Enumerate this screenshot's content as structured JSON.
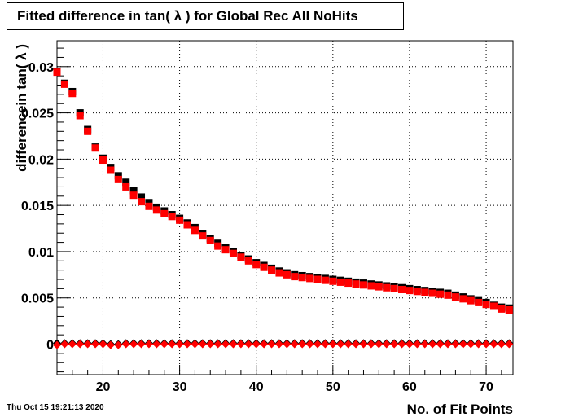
{
  "title": "Fitted difference in tan( λ ) for Global Rec All NoHits",
  "footer_date": "Thu Oct 15 19:21:13 2020",
  "chart_data": {
    "type": "scatter",
    "title": "Fitted difference in tan( λ ) for Global Rec All NoHits",
    "xlabel": "No. of Fit Points",
    "ylabel": "differencein tan( λ )",
    "xlim": [
      14,
      73.5
    ],
    "ylim": [
      -0.0033,
      0.0328
    ],
    "x_ticks": [
      20,
      30,
      40,
      50,
      60,
      70
    ],
    "x_tick_labels": [
      "20",
      "30",
      "40",
      "50",
      "60",
      "70"
    ],
    "y_ticks": [
      0,
      0.005,
      0.01,
      0.015,
      0.02,
      0.025,
      0.03
    ],
    "y_tick_labels": [
      "0",
      "0.005",
      "0.01",
      "0.015",
      "0.02",
      "0.025",
      "0.03"
    ],
    "grid": true,
    "colors": {
      "black_series": "#000000",
      "red_series": "#ff0000"
    },
    "x": [
      14,
      15,
      16,
      17,
      18,
      19,
      20,
      21,
      22,
      23,
      24,
      25,
      26,
      27,
      28,
      29,
      30,
      31,
      32,
      33,
      34,
      35,
      36,
      37,
      38,
      39,
      40,
      41,
      42,
      43,
      44,
      45,
      46,
      47,
      48,
      49,
      50,
      51,
      52,
      53,
      54,
      55,
      56,
      57,
      58,
      59,
      60,
      61,
      62,
      63,
      64,
      65,
      66,
      67,
      68,
      69,
      70,
      71,
      72,
      73
    ],
    "series": [
      {
        "marker": "square",
        "color": "#000000",
        "values": [
          0.0295,
          0.0282,
          0.0273,
          0.025,
          0.0232,
          0.0213,
          0.0201,
          0.0191,
          0.0182,
          0.0175,
          0.0166,
          0.0159,
          0.0153,
          0.0148,
          0.0144,
          0.014,
          0.0136,
          0.0131,
          0.0126,
          0.0119,
          0.0114,
          0.0109,
          0.0104,
          0.01,
          0.0096,
          0.0092,
          0.0088,
          0.0085,
          0.0082,
          0.0079,
          0.0077,
          0.0075,
          0.0074,
          0.0073,
          0.0072,
          0.0071,
          0.007,
          0.0069,
          0.0068,
          0.0067,
          0.0066,
          0.0065,
          0.0064,
          0.0063,
          0.0062,
          0.0061,
          0.006,
          0.0059,
          0.0058,
          0.0057,
          0.0056,
          0.0055,
          0.0053,
          0.0051,
          0.0049,
          0.0047,
          0.0045,
          0.0042,
          0.004,
          0.0039
        ]
      },
      {
        "marker": "square",
        "color": "#ff0000",
        "values": [
          0.0294,
          0.0281,
          0.0271,
          0.0247,
          0.023,
          0.0212,
          0.0199,
          0.0188,
          0.0178,
          0.017,
          0.0161,
          0.0154,
          0.0149,
          0.0145,
          0.0141,
          0.0138,
          0.0134,
          0.0129,
          0.0123,
          0.0117,
          0.0112,
          0.0106,
          0.0102,
          0.0098,
          0.0094,
          0.009,
          0.0086,
          0.0083,
          0.008,
          0.0077,
          0.0075,
          0.0073,
          0.0072,
          0.0071,
          0.007,
          0.0069,
          0.0068,
          0.0067,
          0.0066,
          0.0065,
          0.0064,
          0.0063,
          0.0062,
          0.0061,
          0.006,
          0.0059,
          0.0058,
          0.0057,
          0.0056,
          0.0055,
          0.0054,
          0.0053,
          0.0051,
          0.0049,
          0.0047,
          0.0045,
          0.0043,
          0.0041,
          0.0038,
          0.0037
        ]
      },
      {
        "marker": "diamond",
        "color": "#000000",
        "values": [
          0.0001,
          0.0001,
          0.0001,
          0.0001,
          0.0001,
          0.0001,
          0.0001,
          0.0,
          0.0,
          0.0001,
          0.0001,
          0.0001,
          0.0001,
          0.0001,
          0.0001,
          0.0001,
          0.0001,
          0.0001,
          0.0001,
          0.0001,
          0.0001,
          0.0001,
          0.0001,
          0.0001,
          0.0001,
          0.0001,
          0.0001,
          0.0001,
          0.0001,
          0.0001,
          0.0001,
          0.0001,
          0.0001,
          0.0001,
          0.0001,
          0.0001,
          0.0001,
          0.0001,
          0.0001,
          0.0001,
          0.0001,
          0.0001,
          0.0001,
          0.0001,
          0.0001,
          0.0001,
          0.0001,
          0.0001,
          0.0001,
          0.0001,
          0.0001,
          0.0001,
          0.0001,
          0.0001,
          0.0001,
          0.0001,
          0.0001,
          0.0001,
          0.0001,
          0.0001
        ]
      },
      {
        "marker": "diamond",
        "color": "#ff0000",
        "values": [
          -0.0001,
          0.0,
          0.0,
          0.0,
          0.0,
          0.0,
          0.0,
          -0.0001,
          -0.0001,
          0.0,
          0.0,
          0.0,
          0.0,
          0.0,
          0.0,
          0.0,
          0.0,
          0.0,
          0.0,
          0.0,
          0.0,
          0.0,
          0.0,
          0.0,
          0.0,
          0.0,
          0.0,
          0.0,
          0.0,
          0.0,
          0.0,
          0.0,
          0.0,
          0.0,
          0.0,
          0.0,
          0.0,
          0.0,
          0.0,
          0.0,
          0.0,
          0.0,
          0.0,
          0.0,
          0.0,
          0.0,
          0.0,
          0.0,
          0.0,
          0.0,
          0.0,
          0.0,
          0.0,
          0.0,
          0.0,
          0.0,
          0.0,
          0.0,
          0.0,
          0.0
        ]
      }
    ]
  }
}
